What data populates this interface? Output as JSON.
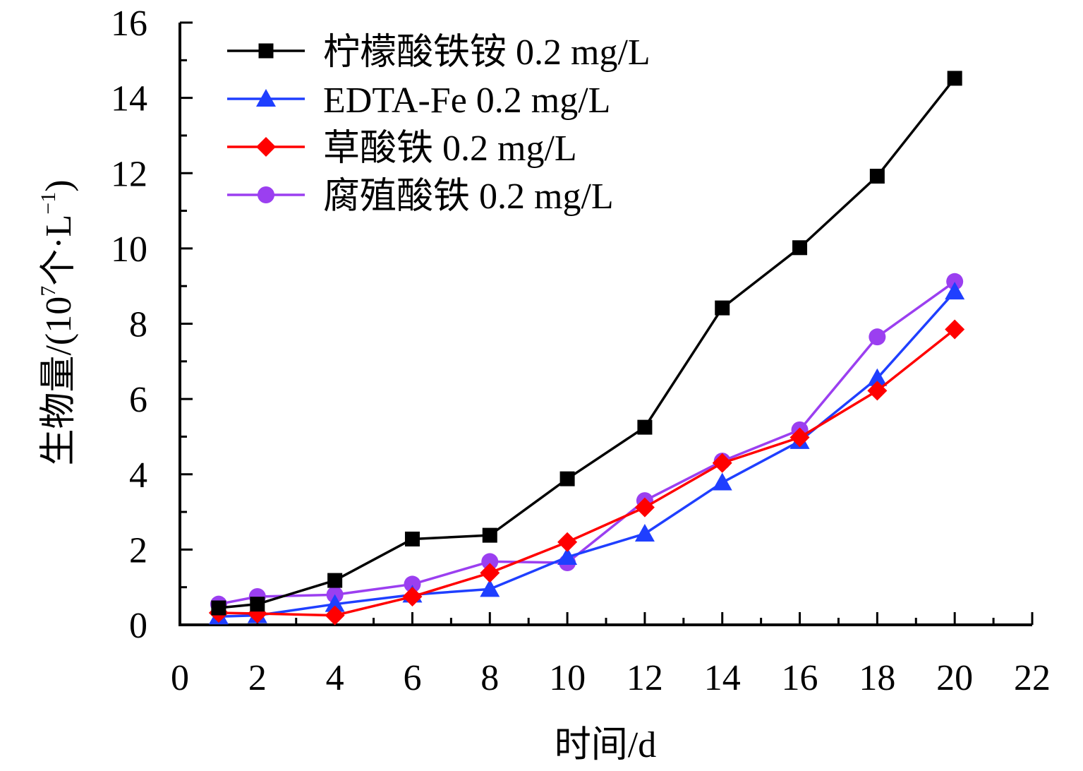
{
  "chart_data": {
    "type": "line",
    "title": "",
    "xlabel": "时间/d",
    "ylabel_main": "生物量/(10",
    "ylabel_sup": "7",
    "ylabel_unit": "个·L",
    "ylabel_unit_sup": "−1",
    "ylabel_close": ")",
    "xlim": [
      0,
      22
    ],
    "ylim": [
      0,
      16
    ],
    "xticks": [
      0,
      2,
      4,
      6,
      8,
      10,
      12,
      14,
      16,
      18,
      20,
      22
    ],
    "yticks": [
      0,
      2,
      4,
      6,
      8,
      10,
      12,
      14,
      16
    ],
    "x": [
      1,
      2,
      4,
      6,
      8,
      10,
      12,
      14,
      16,
      18,
      20
    ],
    "legend_position": "top-left",
    "series": [
      {
        "name": "柠檬酸铁铵 0.2 mg/L",
        "color": "#000000",
        "marker": "square",
        "values": [
          0.45,
          0.55,
          1.18,
          2.28,
          2.38,
          3.88,
          5.25,
          8.42,
          10.02,
          11.92,
          14.52
        ]
      },
      {
        "name": "EDTA-Fe 0.2 mg/L",
        "color": "#1f3fff",
        "marker": "triangle",
        "values": [
          0.22,
          0.25,
          0.55,
          0.8,
          0.95,
          1.8,
          2.42,
          3.78,
          4.88,
          6.55,
          8.85
        ]
      },
      {
        "name": "草酸铁 0.2 mg/L",
        "color": "#ff0000",
        "marker": "diamond",
        "values": [
          0.32,
          0.3,
          0.25,
          0.75,
          1.38,
          2.2,
          3.12,
          4.3,
          4.98,
          6.22,
          7.85
        ]
      },
      {
        "name": "腐殖酸铁 0.2 mg/L",
        "color": "#9b3ff0",
        "marker": "circle",
        "values": [
          0.55,
          0.75,
          0.8,
          1.08,
          1.68,
          1.65,
          3.3,
          4.35,
          5.18,
          7.65,
          9.12
        ]
      }
    ]
  }
}
